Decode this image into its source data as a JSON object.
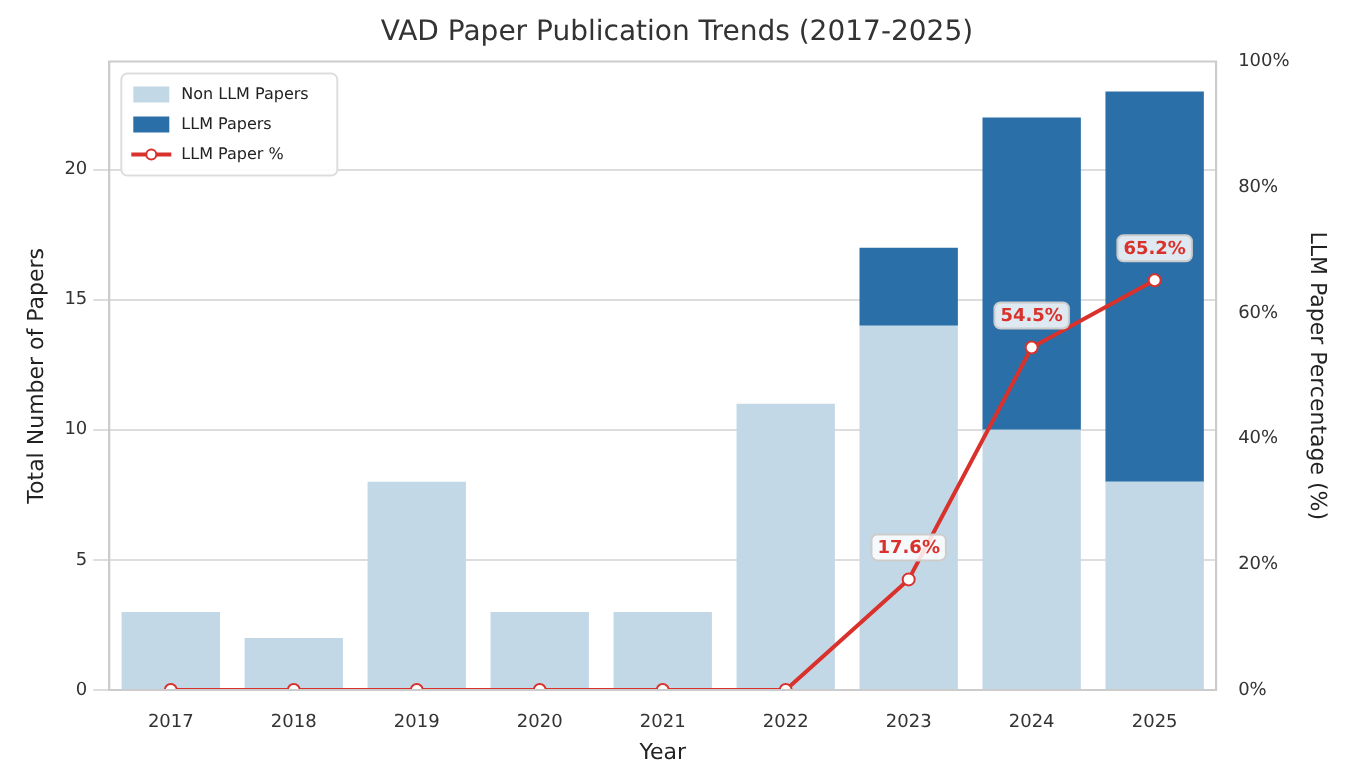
{
  "chart_data": {
    "type": "bar",
    "title": "VAD Paper Publication Trends (2017-2025)",
    "xlabel": "Year",
    "ylabel": "Total Number of Papers",
    "y2label": "LLM Paper Percentage (%)",
    "categories": [
      "2017",
      "2018",
      "2019",
      "2020",
      "2021",
      "2022",
      "2023",
      "2024",
      "2025"
    ],
    "series": [
      {
        "name": "Non LLM Papers",
        "color": "#c3d8e6",
        "values": [
          3,
          2,
          8,
          3,
          3,
          11,
          14,
          10,
          8
        ]
      },
      {
        "name": "LLM Papers",
        "color": "#2a6fa8",
        "values": [
          0,
          0,
          0,
          0,
          0,
          0,
          3,
          12,
          15
        ]
      },
      {
        "name": "LLM Paper %",
        "type": "line",
        "axis": "y2",
        "color": "#d9312b",
        "values": [
          0,
          0,
          0,
          0,
          0,
          0,
          17.6,
          54.5,
          65.2
        ],
        "value_labels": [
          null,
          null,
          null,
          null,
          null,
          null,
          "17.6%",
          "54.5%",
          "65.2%"
        ]
      }
    ],
    "stacked": true,
    "ylim": [
      0,
      24.15
    ],
    "yticks": [
      0,
      5,
      10,
      15,
      20
    ],
    "y2lim": [
      0,
      100
    ],
    "y2ticks": [
      {
        "value": 0,
        "label": "0%"
      },
      {
        "value": 20,
        "label": "20%"
      },
      {
        "value": 40,
        "label": "40%"
      },
      {
        "value": 60,
        "label": "60%"
      },
      {
        "value": 80,
        "label": "80%"
      },
      {
        "value": 100,
        "label": "100%"
      }
    ],
    "grid": "y",
    "legend": "top left",
    "marker": "circle",
    "line_style": "solid"
  }
}
